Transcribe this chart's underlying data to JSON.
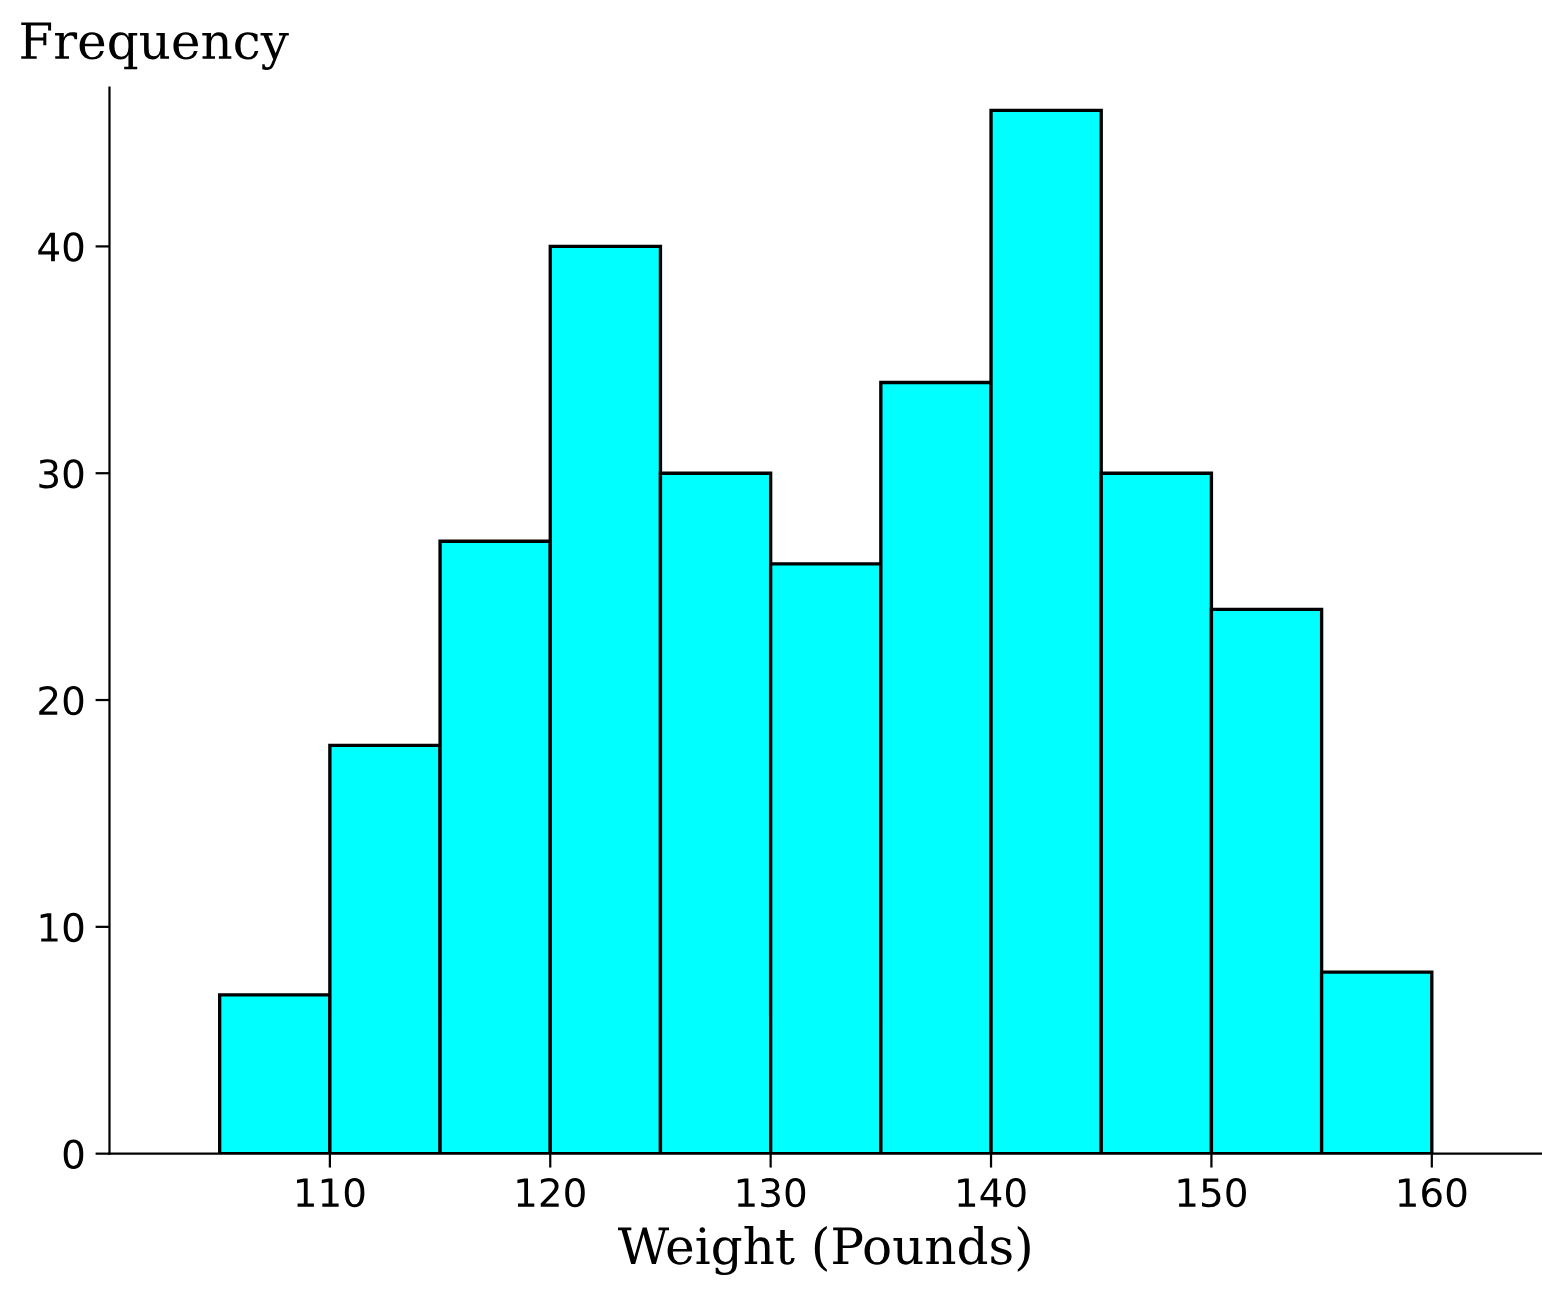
{
  "chart_data": {
    "type": "histogram",
    "xlabel": "Weight (Pounds)",
    "ylabel": "Frequency",
    "bins": [
      105,
      110,
      115,
      120,
      125,
      130,
      135,
      140,
      145,
      150,
      155,
      160
    ],
    "values": [
      7,
      18,
      27,
      40,
      30,
      26,
      34,
      46,
      30,
      24,
      8
    ],
    "color": "#00ffff",
    "xlim": [
      100,
      165
    ],
    "ylim": [
      0,
      47
    ],
    "xticks": [
      110,
      120,
      130,
      140,
      150,
      160
    ],
    "yticks": [
      0,
      10,
      20,
      30,
      40
    ],
    "grid": false
  }
}
